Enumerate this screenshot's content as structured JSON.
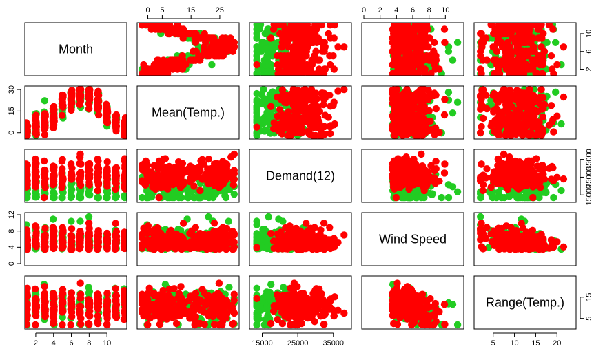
{
  "chart_data": {
    "type": "scatter",
    "subtype": "pairs-matrix",
    "variables": [
      "Month",
      "Mean(Temp.)",
      "Demand(12)",
      "Wind Speed",
      "Range(Temp.)"
    ],
    "colors": {
      "group_a": "#ff0000",
      "group_b": "#22cc22"
    },
    "ranges": {
      "Month": [
        1,
        12
      ],
      "Mean(Temp.)": [
        -3,
        31
      ],
      "Demand(12)": [
        12000,
        39500
      ],
      "Wind Speed": [
        0,
        12
      ],
      "Range(Temp.)": [
        1,
        24
      ]
    },
    "ticks": {
      "Month": {
        "left": [
          "2",
          "6",
          "10"
        ],
        "right": [
          "2",
          "6",
          "10"
        ],
        "bottom": [
          "2",
          "4",
          "6",
          "8",
          "10"
        ]
      },
      "Mean(Temp.)": {
        "left": [
          "0",
          "15",
          "30"
        ],
        "top": [
          "0",
          "5",
          "15",
          "25"
        ]
      },
      "Demand(12)": {
        "right": [
          "15000",
          "25000",
          "35000"
        ],
        "bottom": [
          "15000",
          "25000",
          "35000"
        ]
      },
      "Wind Speed": {
        "left": [
          "0",
          "4",
          "8",
          "12"
        ],
        "top": [
          "0",
          "2",
          "4",
          "6",
          "8",
          "10"
        ]
      },
      "Range(Temp.)": {
        "right": [
          "5",
          "15"
        ],
        "bottom": [
          "5",
          "10",
          "15",
          "20"
        ]
      }
    },
    "grid": false,
    "legend": "none",
    "n_points": 365
  }
}
